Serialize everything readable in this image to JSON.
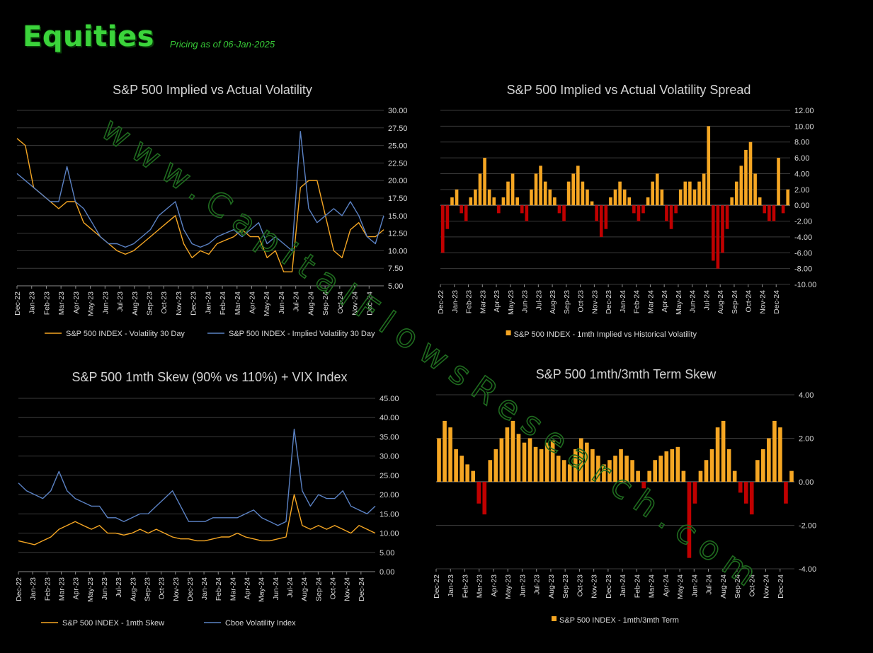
{
  "header": {
    "title": "Equities",
    "pricing": "Pricing as of 06-Jan-2025"
  },
  "watermark": "www.CapitalFlowsResearch.com",
  "colors": {
    "orange": "#f5a623",
    "blue": "#5b82c4",
    "red": "#c00000",
    "grid": "#3a3a3a",
    "title_green": "#3bd43b",
    "watermark": "#1f6b1f"
  },
  "chart_data": [
    {
      "type": "line",
      "title": "S&P 500 Implied vs Actual Volatility",
      "x_labels": [
        "Dec-22",
        "Jan-23",
        "Feb-23",
        "Mar-23",
        "Apr-23",
        "May-23",
        "Jun-23",
        "Jul-23",
        "Aug-23",
        "Sep-23",
        "Oct-23",
        "Nov-23",
        "Dec-23",
        "Jan-24",
        "Feb-24",
        "Mar-24",
        "Apr-24",
        "May-24",
        "Jun-24",
        "Jul-24",
        "Aug-24",
        "Sep-24",
        "Oct-24",
        "Nov-24",
        "Dec-24"
      ],
      "ylim": [
        5,
        30
      ],
      "yticks": [
        "5.00",
        "7.50",
        "10.00",
        "12.50",
        "15.00",
        "17.50",
        "20.00",
        "22.50",
        "25.00",
        "27.50",
        "30.00"
      ],
      "y_axis": "right",
      "legend": "bottom",
      "series": [
        {
          "name": "S&P 500 INDEX - Volatility 30 Day",
          "color": "orange",
          "values": [
            26,
            25,
            19,
            18,
            17,
            16,
            17,
            17,
            14,
            13,
            12,
            11,
            10,
            9.5,
            10,
            11,
            12,
            13,
            14,
            15,
            11,
            9,
            10,
            9.5,
            11,
            11.5,
            12,
            13,
            12,
            12,
            9,
            10,
            7,
            7,
            19,
            20,
            20,
            15,
            10,
            9,
            13,
            14,
            12,
            12,
            13
          ]
        },
        {
          "name": "S&P 500 INDEX - Implied Volatility 30 Day",
          "color": "blue",
          "values": [
            21,
            20,
            19,
            18,
            17,
            17,
            22,
            17,
            16,
            14,
            12,
            11,
            11,
            10.5,
            11,
            12,
            13,
            15,
            16,
            17,
            13,
            11,
            10.5,
            11,
            12,
            12.5,
            13,
            12,
            13,
            14,
            11,
            12,
            11,
            10,
            27,
            16,
            14,
            15,
            16,
            15,
            17,
            15,
            12,
            11,
            15
          ]
        }
      ]
    },
    {
      "type": "bar",
      "title": "S&P 500 Implied vs Actual Volatility Spread",
      "x_labels": [
        "Dec-22",
        "Jan-23",
        "Feb-23",
        "Mar-23",
        "Apr-23",
        "May-23",
        "Jun-23",
        "Jul-23",
        "Aug-23",
        "Sep-23",
        "Oct-23",
        "Nov-23",
        "Dec-23",
        "Jan-24",
        "Feb-24",
        "Mar-24",
        "Apr-24",
        "May-24",
        "Jun-24",
        "Jul-24",
        "Aug-24",
        "Sep-24",
        "Oct-24",
        "Nov-24",
        "Dec-24"
      ],
      "ylim": [
        -10,
        12
      ],
      "yticks": [
        "-10.00",
        "-8.00",
        "-6.00",
        "-4.00",
        "-2.00",
        "0.00",
        "2.00",
        "4.00",
        "6.00",
        "8.00",
        "10.00",
        "12.00"
      ],
      "y_axis": "right",
      "legend": "bottom",
      "series": [
        {
          "name": "S&P 500 INDEX - 1mth Implied vs Historical Volatility",
          "color": "orange",
          "negative_color": "red",
          "values": [
            -6,
            -3,
            1,
            2,
            -1,
            -2,
            1,
            2,
            4,
            6,
            2,
            1,
            -1,
            1,
            3,
            4,
            1,
            -1,
            -2,
            2,
            4,
            5,
            3,
            2,
            1,
            -1,
            -2,
            3,
            4,
            5,
            3,
            2,
            0.5,
            -2,
            -4,
            -3,
            1,
            2,
            3,
            2,
            1,
            -1,
            -2,
            -1,
            1,
            3,
            4,
            2,
            -2,
            -3,
            -1,
            2,
            3,
            3,
            2,
            3,
            4,
            10,
            -7,
            -8,
            -6,
            -3,
            1,
            3,
            5,
            7,
            8,
            4,
            1,
            -1,
            -2,
            -2,
            6,
            -1,
            2
          ]
        }
      ]
    },
    {
      "type": "line",
      "title": "S&P 500 1mth Skew (90% vs 110%) + VIX Index",
      "x_labels": [
        "Dec-22",
        "Jan-23",
        "Feb-23",
        "Mar-23",
        "Apr-23",
        "May-23",
        "Jun-23",
        "Jul-23",
        "Aug-23",
        "Sep-23",
        "Oct-23",
        "Nov-23",
        "Dec-23",
        "Jan-24",
        "Feb-24",
        "Mar-24",
        "Apr-24",
        "May-24",
        "Jun-24",
        "Jul-24",
        "Aug-24",
        "Sep-24",
        "Oct-24",
        "Nov-24",
        "Dec-24"
      ],
      "ylim": [
        0,
        45
      ],
      "yticks": [
        "0.00",
        "5.00",
        "10.00",
        "15.00",
        "20.00",
        "25.00",
        "30.00",
        "35.00",
        "40.00",
        "45.00"
      ],
      "y_axis": "right",
      "legend": "bottom",
      "series": [
        {
          "name": "S&P 500 INDEX - 1mth Skew",
          "color": "orange",
          "values": [
            8,
            7.5,
            7,
            8,
            9,
            11,
            12,
            13,
            12,
            11,
            12,
            10,
            10,
            9.5,
            10,
            11,
            10,
            11,
            10,
            9,
            8.5,
            8.5,
            8,
            8,
            8.5,
            9,
            9,
            10,
            9,
            8.5,
            8,
            8,
            8.5,
            9,
            20,
            12,
            11,
            12,
            11,
            12,
            11,
            10,
            12,
            11,
            10
          ]
        },
        {
          "name": "Cboe Volatility Index",
          "color": "blue",
          "values": [
            23,
            21,
            20,
            19,
            21,
            26,
            21,
            19,
            18,
            17,
            17,
            14,
            14,
            13,
            14,
            15,
            15,
            17,
            19,
            21,
            17,
            13,
            13,
            13,
            14,
            14,
            14,
            14,
            15,
            16,
            14,
            13,
            12,
            13,
            37,
            21,
            17,
            20,
            19,
            19,
            21,
            17,
            16,
            15,
            17
          ]
        }
      ]
    },
    {
      "type": "bar",
      "title": "S&P 500 1mth/3mth Term Skew",
      "x_labels": [
        "Dec-22",
        "Jan-23",
        "Feb-23",
        "Mar-23",
        "Apr-23",
        "May-23",
        "Jun-23",
        "Jul-23",
        "Aug-23",
        "Sep-23",
        "Oct-23",
        "Nov-23",
        "Dec-23",
        "Jan-24",
        "Feb-24",
        "Mar-24",
        "Apr-24",
        "May-24",
        "Jun-24",
        "Jul-24",
        "Aug-24",
        "Sep-24",
        "Oct-24",
        "Nov-24",
        "Dec-24"
      ],
      "ylim": [
        -4,
        4
      ],
      "yticks": [
        "-4.00",
        "-2.00",
        "0.00",
        "2.00",
        "4.00"
      ],
      "y_axis": "right",
      "legend": "bottom",
      "series": [
        {
          "name": "S&P 500 INDEX - 1mth/3mth Term",
          "color": "orange",
          "negative_color": "red",
          "values": [
            2,
            2.8,
            2.5,
            1.5,
            1.2,
            0.8,
            0.5,
            -1,
            -1.5,
            1,
            1.5,
            2,
            2.5,
            2.8,
            2.2,
            1.8,
            2,
            1.6,
            1.5,
            1.8,
            1.9,
            1.2,
            1,
            0.8,
            1.5,
            2,
            1.8,
            1.5,
            1.2,
            0.8,
            1,
            1.2,
            1.5,
            1.2,
            1,
            0.5,
            -0.3,
            0.5,
            1,
            1.2,
            1.4,
            1.5,
            1.6,
            0.5,
            -3.5,
            -1,
            0.5,
            1,
            1.5,
            2.5,
            2.8,
            1.5,
            0.5,
            -0.5,
            -1,
            -1.5,
            1,
            1.5,
            2,
            2.8,
            2.5,
            -1,
            0.5
          ]
        }
      ]
    }
  ]
}
